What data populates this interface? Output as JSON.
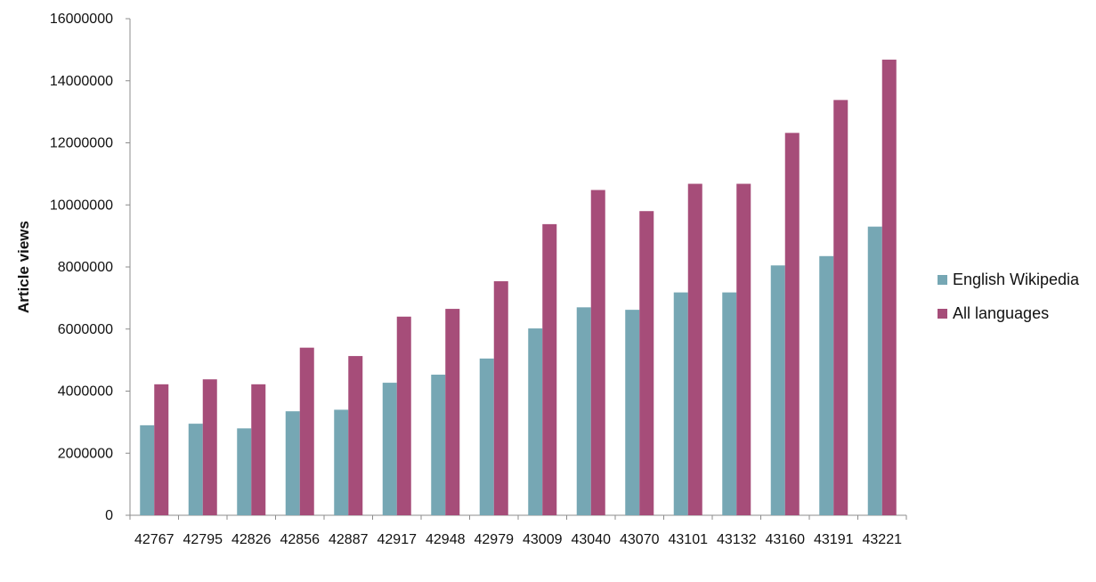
{
  "chart_data": {
    "type": "bar",
    "title": "",
    "xlabel": "",
    "ylabel": "Article views",
    "ylim": [
      0,
      16000000
    ],
    "yticks": [
      0,
      2000000,
      4000000,
      6000000,
      8000000,
      10000000,
      12000000,
      14000000,
      16000000
    ],
    "ytick_labels": [
      "0",
      "2000000",
      "4000000",
      "6000000",
      "8000000",
      "10000000",
      "12000000",
      "14000000",
      "16000000"
    ],
    "grid": false,
    "legend_position": "right",
    "categories": [
      "42767",
      "42795",
      "42826",
      "42856",
      "42887",
      "42917",
      "42948",
      "42979",
      "43009",
      "43040",
      "43070",
      "43101",
      "43132",
      "43160",
      "43191",
      "43221"
    ],
    "series": [
      {
        "name": "English Wikipedia",
        "color": "#76a7b4",
        "values": [
          2900000,
          2950000,
          2800000,
          3350000,
          3400000,
          4270000,
          4530000,
          5050000,
          6020000,
          6700000,
          6620000,
          7180000,
          7180000,
          8050000,
          8350000,
          9300000
        ]
      },
      {
        "name": "All languages",
        "color": "#a64d79",
        "values": [
          4220000,
          4380000,
          4220000,
          5400000,
          5130000,
          6400000,
          6650000,
          7540000,
          9380000,
          10480000,
          9800000,
          10680000,
          10680000,
          12320000,
          13380000,
          14680000
        ]
      }
    ]
  }
}
